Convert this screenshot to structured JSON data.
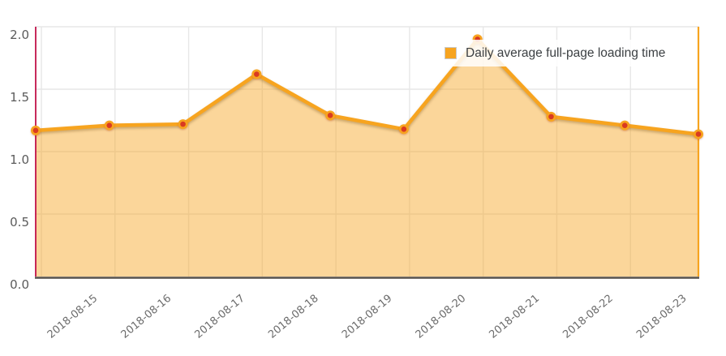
{
  "chart_data": {
    "type": "area",
    "title": "",
    "xlabel": "",
    "ylabel": "",
    "categories": [
      "",
      "2018-08-15",
      "2018-08-16",
      "2018-08-17",
      "2018-08-18",
      "2018-08-19",
      "2018-08-20",
      "2018-08-21",
      "2018-08-22",
      "2018-08-23"
    ],
    "series": [
      {
        "name": "Daily average full-page loading time",
        "values": [
          1.17,
          1.21,
          1.22,
          1.62,
          1.29,
          1.18,
          1.9,
          1.28,
          1.21,
          1.14
        ]
      }
    ],
    "ylim": [
      0,
      2
    ],
    "y_ticks": [
      0,
      0.5,
      1,
      1.5,
      2
    ],
    "grid": true,
    "legend": {
      "label": "Daily average full-page loading time",
      "position": "top-right"
    },
    "colors": {
      "line": "#F7A41F",
      "fill": "rgba(246,164,31,0.45)",
      "marker": "#D93A22",
      "marker_ring": "#F7A41F",
      "left_bound": "#C11249",
      "right_bound": "#F7A41F",
      "axis_line": "#57514B",
      "gridline": "#E7E7E7",
      "y_tick_text": "#5B5B5B",
      "x_tick_text": "#6B6B6B",
      "legend_text": "#3C4043",
      "legend_bg": "rgba(255,255,255,0.85)",
      "swatch": "#F7A41F"
    }
  }
}
